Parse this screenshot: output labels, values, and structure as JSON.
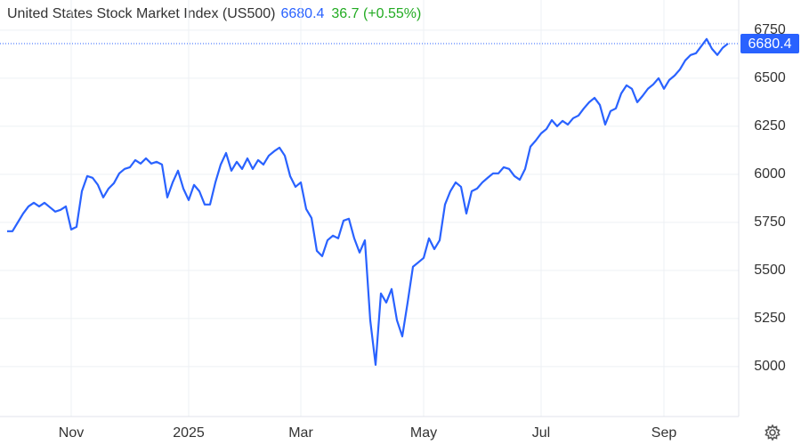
{
  "chart_data": {
    "type": "line",
    "title": "United States Stock Market Index (US500)",
    "change": "36.7 (+0.55%)",
    "color": "#2962ff",
    "change_color": "#22ab22",
    "grid": true,
    "categories": [
      null,
      null,
      null,
      null,
      null,
      null,
      null,
      null,
      null,
      null,
      null,
      null,
      "Nov",
      null,
      null,
      null,
      null,
      null,
      null,
      null,
      null,
      null,
      null,
      null,
      null,
      null,
      null,
      null,
      null,
      null,
      null,
      null,
      null,
      null,
      "2025",
      null,
      null,
      null,
      null,
      null,
      null,
      null,
      null,
      null,
      null,
      null,
      null,
      null,
      null,
      null,
      null,
      null,
      null,
      null,
      null,
      "Mar",
      null,
      null,
      null,
      null,
      null,
      null,
      null,
      null,
      null,
      null,
      null,
      null,
      null,
      null,
      null,
      null,
      null,
      null,
      null,
      null,
      null,
      null,
      "May",
      null,
      null,
      null,
      null,
      null,
      null,
      null,
      null,
      null,
      null,
      null,
      null,
      null,
      null,
      null,
      null,
      null,
      null,
      null,
      null,
      null,
      "Jul",
      null,
      null,
      null,
      null,
      null,
      null,
      null,
      null,
      null,
      null,
      null,
      null,
      null,
      null,
      null,
      null,
      null,
      null,
      null,
      null,
      null,
      null,
      "Sep",
      null,
      null,
      null,
      null,
      null,
      null,
      null,
      null,
      null,
      null,
      null,
      null
    ],
    "values": [
      5704,
      5704,
      5750,
      5796,
      5833,
      5852,
      5833,
      5852,
      5829,
      5806,
      5815,
      5833,
      5713,
      5727,
      5912,
      5991,
      5982,
      5945,
      5880,
      5926,
      5954,
      6005,
      6028,
      6037,
      6074,
      6056,
      6083,
      6056,
      6065,
      6051,
      5880,
      5958,
      6019,
      5926,
      5866,
      5945,
      5912,
      5843,
      5843,
      5958,
      6051,
      6111,
      6019,
      6065,
      6028,
      6083,
      6028,
      6074,
      6051,
      6097,
      6120,
      6139,
      6097,
      5991,
      5935,
      5958,
      5820,
      5773,
      5602,
      5574,
      5657,
      5681,
      5667,
      5759,
      5769,
      5667,
      5593,
      5657,
      5241,
      5009,
      5380,
      5333,
      5403,
      5241,
      5157,
      5333,
      5519,
      5542,
      5565,
      5667,
      5611,
      5657,
      5843,
      5912,
      5958,
      5935,
      5796,
      5912,
      5926,
      5958,
      5982,
      6005,
      6005,
      6037,
      6028,
      5991,
      5972,
      6028,
      6144,
      6176,
      6213,
      6236,
      6282,
      6250,
      6278,
      6259,
      6292,
      6306,
      6343,
      6375,
      6398,
      6361,
      6259,
      6329,
      6343,
      6421,
      6463,
      6445,
      6375,
      6408,
      6445,
      6468,
      6500,
      6445,
      6491,
      6514,
      6546,
      6593,
      6621,
      6630,
      6667,
      6704,
      6653,
      6621,
      6658,
      6680.4
    ],
    "ylim": [
      4740,
      6907
    ],
    "yticks": [
      5000,
      5250,
      5500,
      5750,
      6000,
      6250,
      6500,
      6750
    ]
  }
}
